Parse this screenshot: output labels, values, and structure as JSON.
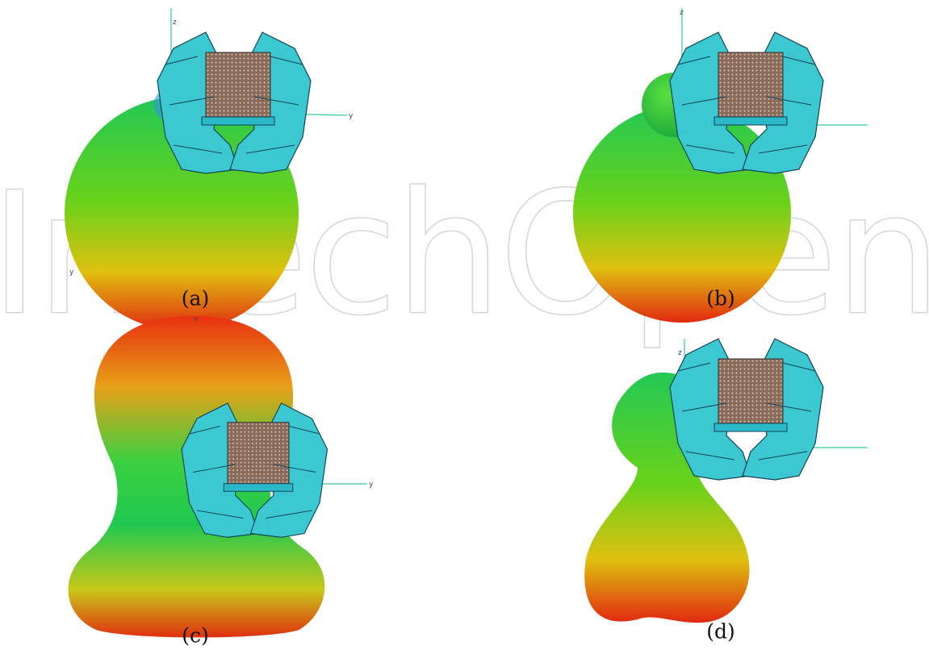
{
  "watermark": "IntechOpen",
  "panels": [
    {
      "label": "(a)",
      "axes": [
        "z",
        "y",
        "y"
      ]
    },
    {
      "label": "(b)",
      "axes": [
        "z"
      ]
    },
    {
      "label": "(c)",
      "axes": [
        "x",
        "y"
      ]
    },
    {
      "label": "(d)",
      "axes": [
        "z"
      ]
    }
  ]
}
